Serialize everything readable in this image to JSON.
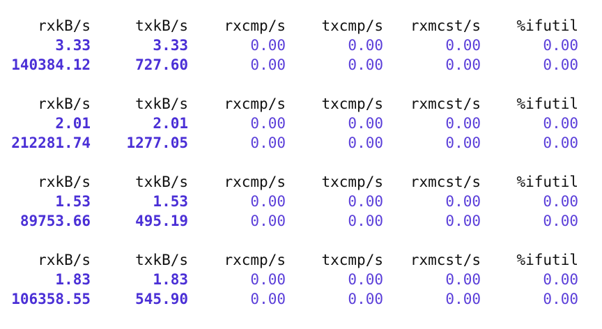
{
  "theme": {
    "header_color": "#111111",
    "value_color": "#5b3fd9",
    "bold_value_color": "#4a2fd6"
  },
  "blocks": [
    {
      "headers": [
        "rxkB/s",
        "txkB/s",
        "rxcmp/s",
        "txcmp/s",
        "rxmcst/s",
        "%ifutil"
      ],
      "rows": [
        [
          "3.33",
          "3.33",
          "0.00",
          "0.00",
          "0.00",
          "0.00"
        ],
        [
          "140384.12",
          "727.60",
          "0.00",
          "0.00",
          "0.00",
          "0.00"
        ]
      ]
    },
    {
      "headers": [
        "rxkB/s",
        "txkB/s",
        "rxcmp/s",
        "txcmp/s",
        "rxmcst/s",
        "%ifutil"
      ],
      "rows": [
        [
          "2.01",
          "2.01",
          "0.00",
          "0.00",
          "0.00",
          "0.00"
        ],
        [
          "212281.74",
          "1277.05",
          "0.00",
          "0.00",
          "0.00",
          "0.00"
        ]
      ]
    },
    {
      "headers": [
        "rxkB/s",
        "txkB/s",
        "rxcmp/s",
        "txcmp/s",
        "rxmcst/s",
        "%ifutil"
      ],
      "rows": [
        [
          "1.53",
          "1.53",
          "0.00",
          "0.00",
          "0.00",
          "0.00"
        ],
        [
          "89753.66",
          "495.19",
          "0.00",
          "0.00",
          "0.00",
          "0.00"
        ]
      ]
    },
    {
      "headers": [
        "rxkB/s",
        "txkB/s",
        "rxcmp/s",
        "txcmp/s",
        "rxmcst/s",
        "%ifutil"
      ],
      "rows": [
        [
          "1.83",
          "1.83",
          "0.00",
          "0.00",
          "0.00",
          "0.00"
        ],
        [
          "106358.55",
          "545.90",
          "0.00",
          "0.00",
          "0.00",
          "0.00"
        ]
      ]
    }
  ]
}
